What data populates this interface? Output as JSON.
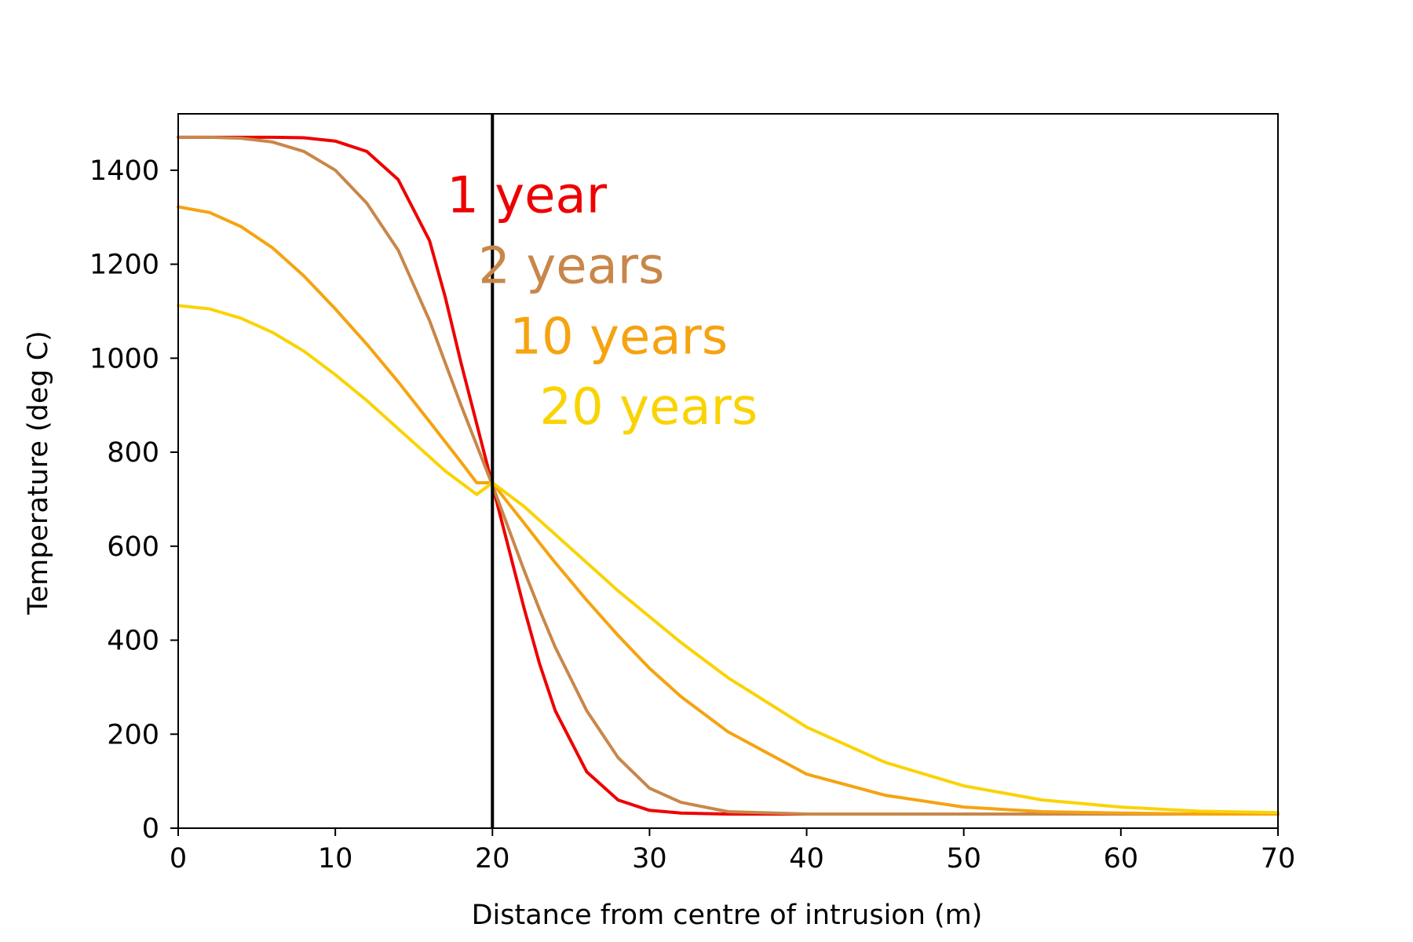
{
  "chart_data": {
    "type": "line",
    "title": "",
    "xlabel": "Distance from centre of intrusion (m)",
    "ylabel": "Temperature (deg C)",
    "xlim": [
      0,
      70
    ],
    "ylim": [
      0,
      1520
    ],
    "xticks": [
      0,
      10,
      20,
      30,
      40,
      50,
      60,
      70
    ],
    "yticks": [
      0,
      200,
      400,
      600,
      800,
      1000,
      1200,
      1400
    ],
    "grid": false,
    "legend": "none",
    "vline": {
      "x": 20,
      "color": "#000000"
    },
    "x": [
      0,
      2,
      4,
      6,
      8,
      10,
      12,
      14,
      16,
      17,
      18,
      19,
      20,
      21,
      22,
      23,
      24,
      26,
      28,
      30,
      32,
      35,
      40,
      45,
      50,
      55,
      60,
      65,
      70
    ],
    "series": [
      {
        "name": "1 year",
        "color": "#ee0000",
        "values": [
          1470,
          1470,
          1470,
          1470,
          1469,
          1462,
          1440,
          1380,
          1250,
          1130,
          990,
          860,
          730,
          600,
          470,
          350,
          250,
          120,
          60,
          38,
          32,
          30,
          30,
          30,
          30,
          30,
          30,
          30,
          30
        ]
      },
      {
        "name": "2 years",
        "color": "#c8874a",
        "values": [
          1470,
          1470,
          1468,
          1460,
          1440,
          1400,
          1330,
          1230,
          1080,
          990,
          900,
          815,
          730,
          640,
          550,
          465,
          385,
          250,
          150,
          85,
          55,
          35,
          30,
          30,
          30,
          30,
          30,
          30,
          30
        ]
      },
      {
        "name": "10 years",
        "color": "#f5a310",
        "values": [
          1322,
          1310,
          1280,
          1235,
          1175,
          1105,
          1030,
          950,
          865,
          822,
          779,
          735,
          735,
          692,
          650,
          607,
          565,
          485,
          410,
          340,
          280,
          205,
          115,
          70,
          45,
          35,
          32,
          30,
          30
        ]
      },
      {
        "name": "20 years",
        "color": "#fad305",
        "values": [
          1112,
          1105,
          1085,
          1055,
          1015,
          965,
          910,
          850,
          790,
          760,
          735,
          710,
          735,
          710,
          685,
          655,
          625,
          565,
          505,
          450,
          395,
          320,
          215,
          140,
          90,
          60,
          45,
          36,
          33
        ]
      }
    ],
    "annotations": [
      {
        "text": "1 year",
        "x": 17.1,
        "y": 1310,
        "color": "#ee0000"
      },
      {
        "text": "2 years",
        "x": 19.1,
        "y": 1160,
        "color": "#c8874a"
      },
      {
        "text": "10 years",
        "x": 21.1,
        "y": 1010,
        "color": "#f5a310"
      },
      {
        "text": "20 years",
        "x": 23.0,
        "y": 860,
        "color": "#fad305"
      }
    ]
  }
}
